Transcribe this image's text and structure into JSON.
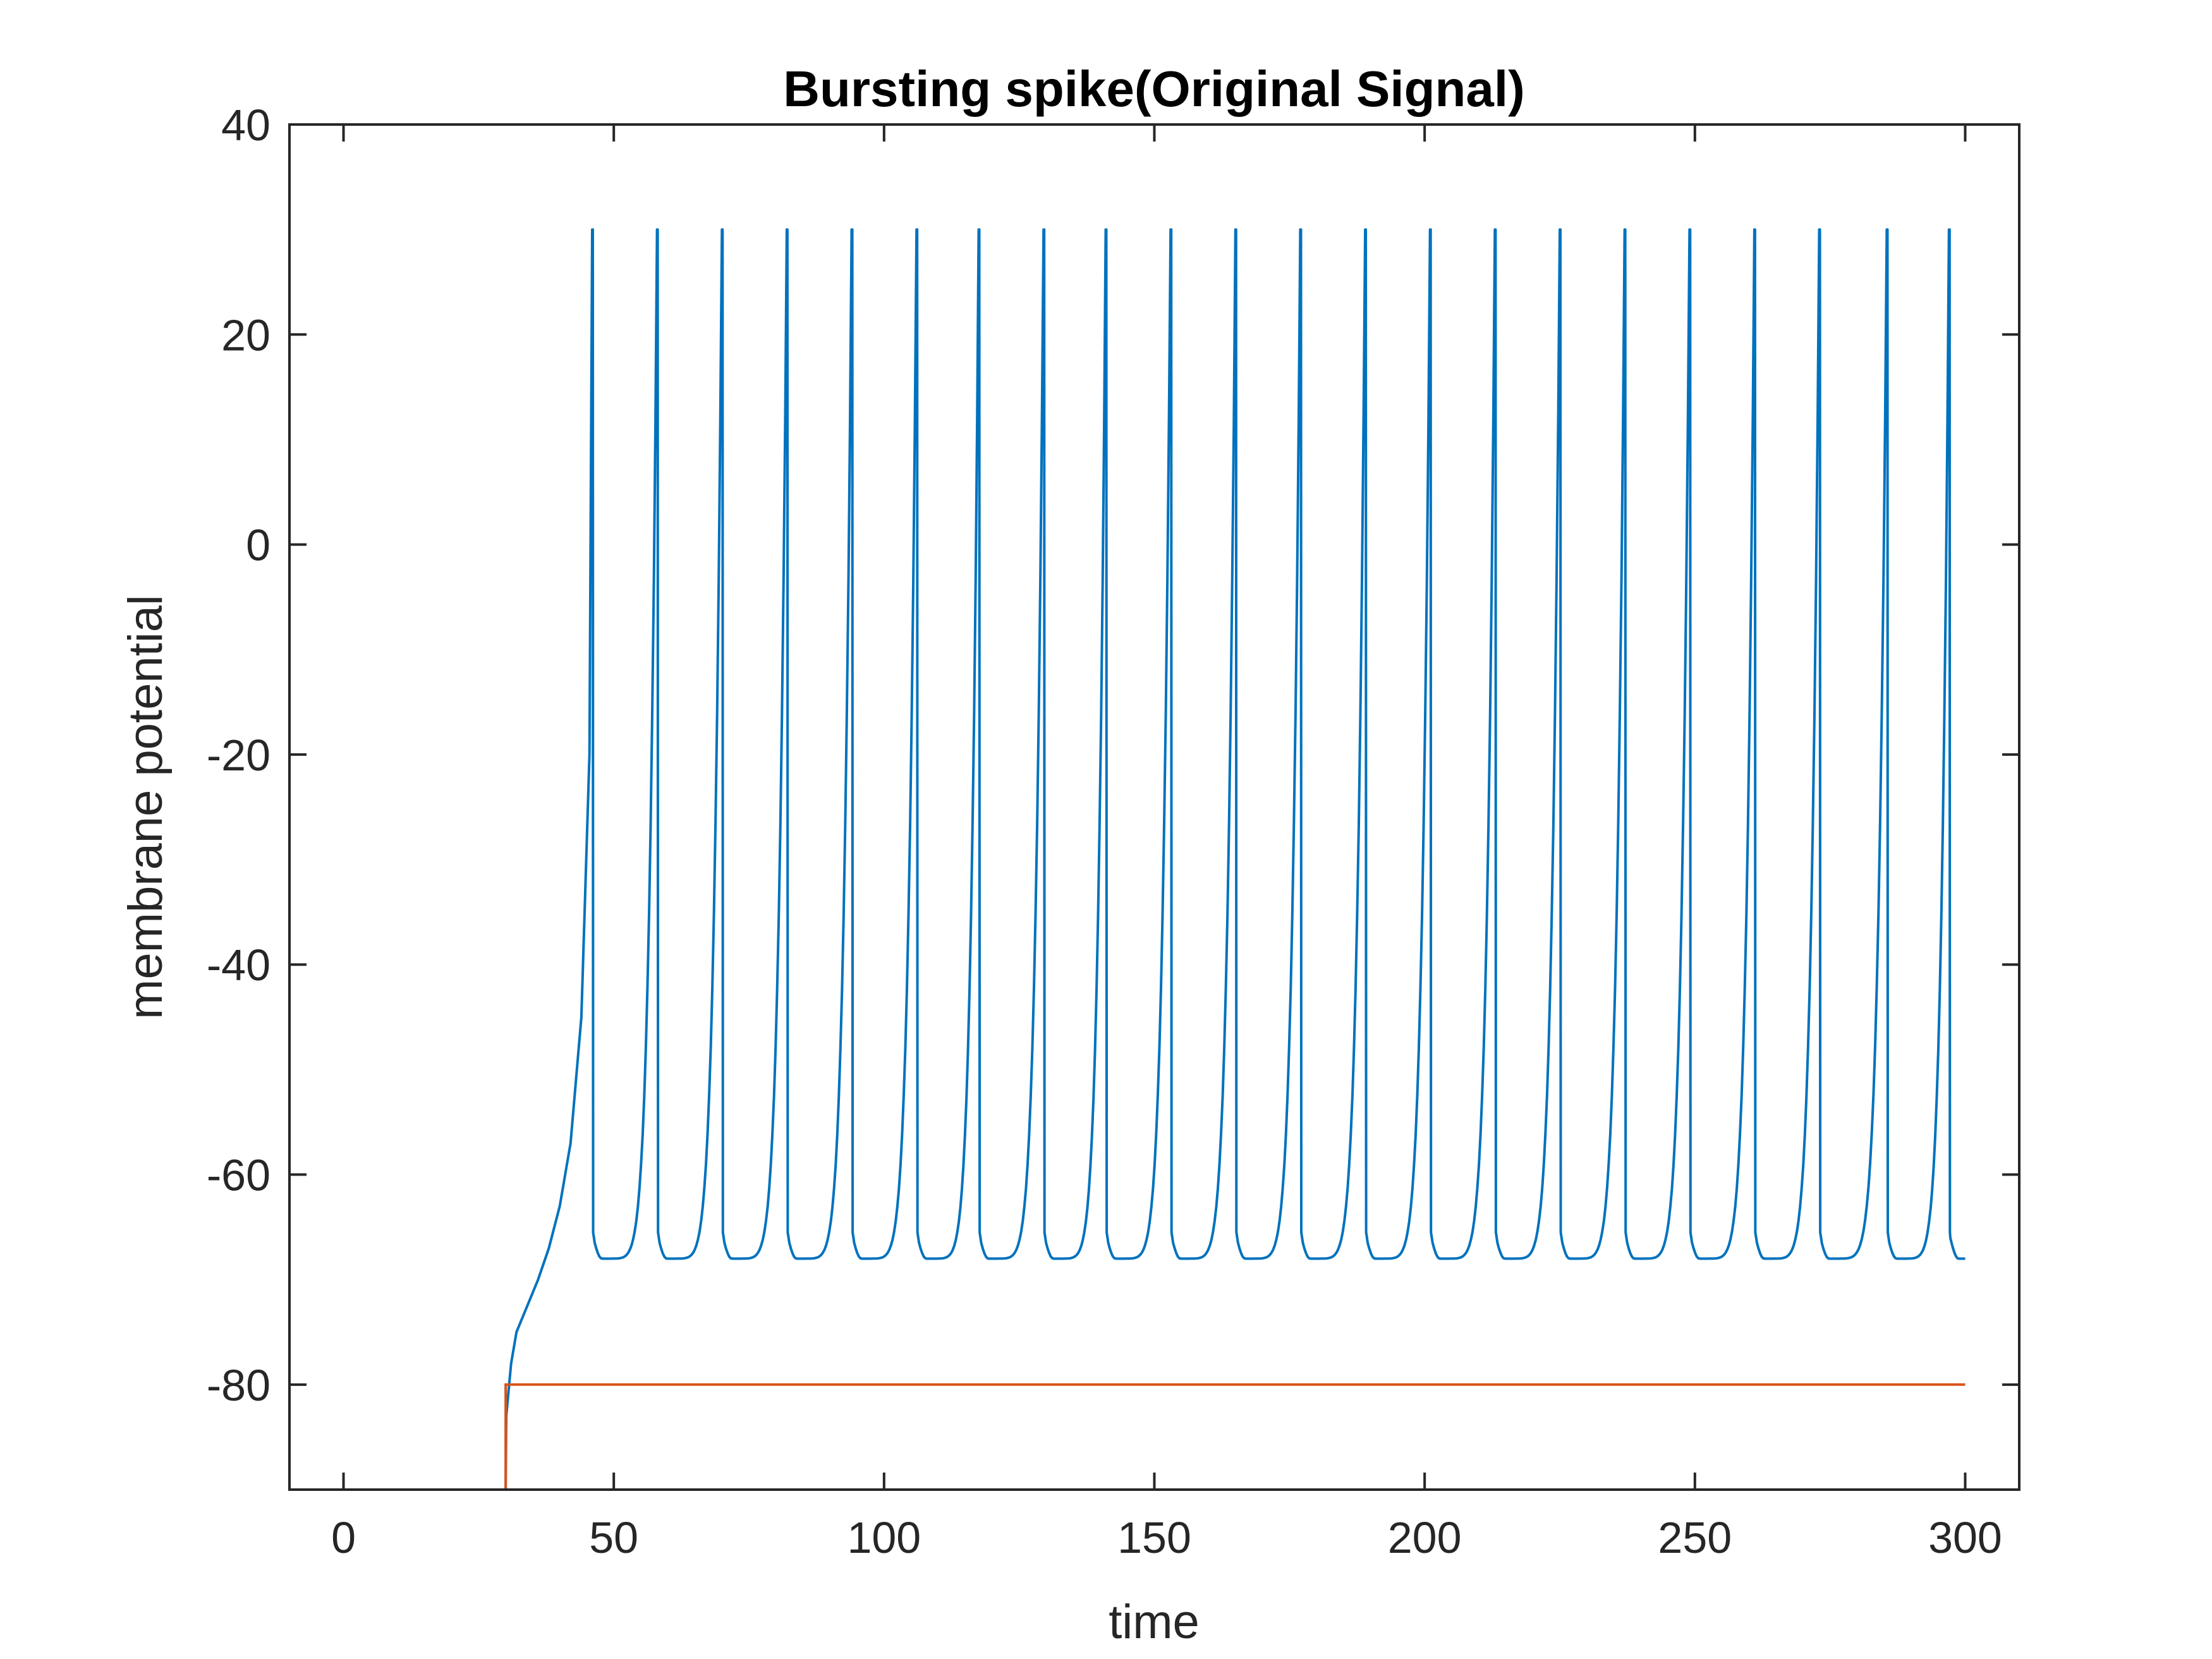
{
  "chart_data": {
    "type": "line",
    "title": "Bursting spike(Original Signal)",
    "xlabel": "time",
    "ylabel": "membrane potential",
    "xlim": [
      -10,
      310
    ],
    "ylim": [
      -90,
      40
    ],
    "xticks": [
      0,
      50,
      100,
      150,
      200,
      250,
      300
    ],
    "yticks": [
      40,
      20,
      0,
      -20,
      -40,
      -60,
      -80
    ],
    "grid": false,
    "legend": "none",
    "colors": {
      "series1": "#0072BD",
      "series2": "#D95319",
      "axes": "#262626"
    },
    "onset_time": 30,
    "spike_times": [
      46,
      58,
      70,
      82,
      94,
      106,
      117.5,
      129.5,
      141,
      153,
      165,
      177,
      189,
      201,
      213,
      225,
      237,
      249,
      261,
      273,
      285.5,
      297
    ],
    "spike_peak": 30,
    "reset_potential": -65.5,
    "trough_potential": -68,
    "series": [
      {
        "values_description_free": true,
        "x": [
          0,
          30,
          30.1,
          31,
          32,
          34,
          36,
          38,
          40,
          42,
          44,
          45.5,
          46
        ],
        "values": [
          -90,
          -90,
          -83,
          -78,
          -75,
          -72.5,
          -70,
          -67,
          -63,
          -57,
          -45,
          -20,
          30
        ]
      },
      {
        "x": [
          0,
          30,
          30,
          300
        ],
        "values": [
          -90,
          -90,
          -80,
          -80
        ]
      }
    ]
  }
}
